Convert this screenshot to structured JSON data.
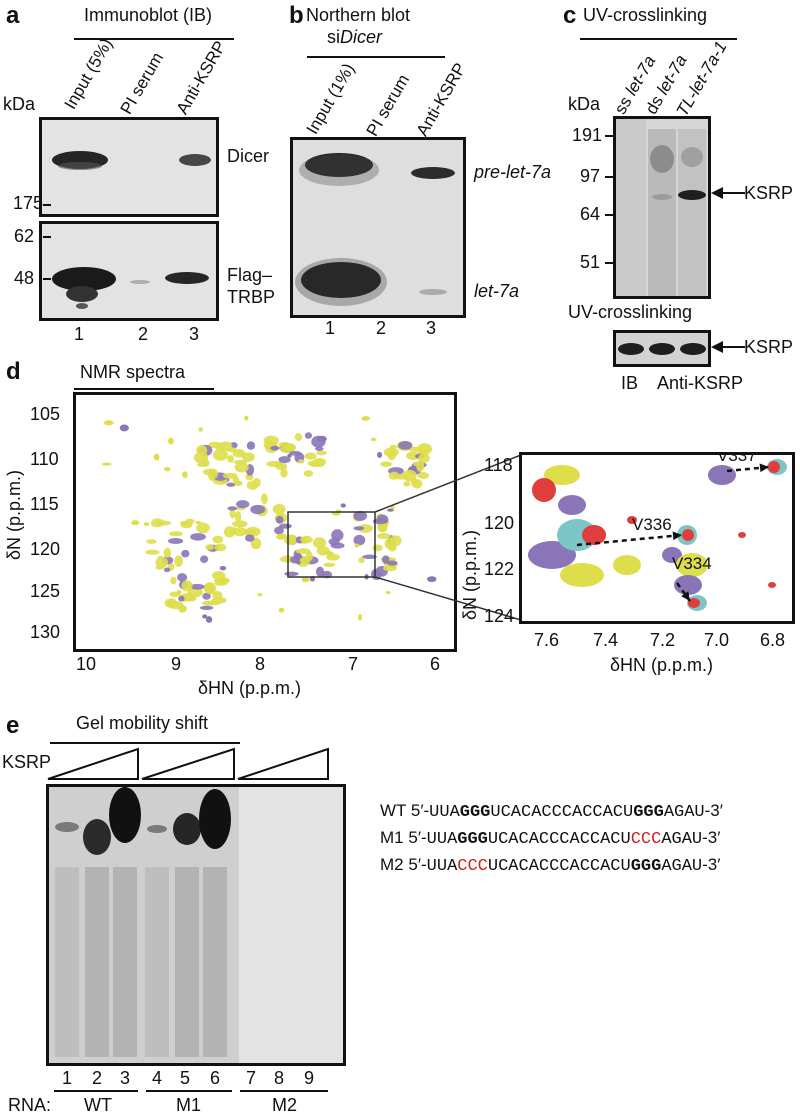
{
  "panel_a": {
    "letter": "a",
    "title": "Immunoblot (IB)",
    "kda_label": "kDa",
    "lanes": [
      "Input (5%)",
      "PI serum",
      "Anti-KSRP"
    ],
    "markers": [
      "175",
      "62",
      "48"
    ],
    "band_labels": [
      "Dicer",
      "Flag–",
      "TRBP"
    ],
    "lane_numbers": [
      "1",
      "2",
      "3"
    ]
  },
  "panel_b": {
    "letter": "b",
    "title_line1": "Northern blot",
    "title_prefix": "si",
    "title_italic": "Dicer",
    "lanes": [
      "Input (1%)",
      "PI serum",
      "Anti-KSRP"
    ],
    "band_labels": [
      "pre-let-7a",
      "let-7a"
    ],
    "lane_numbers": [
      "1",
      "2",
      "3"
    ]
  },
  "panel_c": {
    "letter": "c",
    "title": "UV-crosslinking",
    "kda_label": "kDa",
    "lane1_prefix": "ss ",
    "lane1_italic": "let-7a",
    "lane2_prefix": "ds ",
    "lane2_italic": "let-7a",
    "lane3_italic": "TL-let-7a-1",
    "markers": [
      "191",
      "97",
      "64",
      "51"
    ],
    "arrow_label": "KSRP",
    "lower_title": "UV-crosslinking",
    "lower_arrow_label": "KSRP",
    "ib_label": "IB",
    "anti_label": "Anti-KSRP"
  },
  "panel_d": {
    "letter": "d",
    "title": "NMR spectra",
    "left_xticks": [
      "10",
      "9",
      "8",
      "7",
      "6"
    ],
    "left_yticks": [
      "105",
      "110",
      "115",
      "120",
      "125",
      "130"
    ],
    "xlabel_delta": "δ",
    "xlabel": "HN (p.p.m.)",
    "ylabel_delta": "δ",
    "ylabel": "N (p.p.m.)",
    "right_xticks": [
      "7.6",
      "7.4",
      "7.2",
      "7.0",
      "6.8"
    ],
    "right_yticks": [
      "118",
      "120",
      "122",
      "124"
    ],
    "annotations": [
      "V337",
      "V336",
      "V334"
    ],
    "colors": {
      "purple": "#8a75b8",
      "yellow": "#dede4a",
      "red": "#e23d3d",
      "cyan": "#7cc6c8"
    }
  },
  "panel_e": {
    "letter": "e",
    "title": "Gel mobility shift",
    "ksrp_label": "KSRP",
    "lane_numbers": [
      "1",
      "2",
      "3",
      "4",
      "5",
      "6",
      "7",
      "8",
      "9"
    ],
    "rna_label": "RNA:",
    "groups": [
      "WT",
      "M1",
      "M2"
    ],
    "sequences": [
      {
        "name": "WT",
        "prefix": "5′-",
        "s1": "UUA",
        "s2": "GGG",
        "s3": "UCACACCCACCACU",
        "s4": "GGG",
        "s5": "AGAU",
        "suffix": "-3′"
      },
      {
        "name": "M1",
        "prefix": "5′-",
        "s1": "UUA",
        "s2": "GGG",
        "s3": "UCACACCCACCACU",
        "s4": "CCC",
        "s5": "AGAU",
        "suffix": "-3′"
      },
      {
        "name": "M2",
        "prefix": "5′-",
        "s1": "UUA",
        "s2": "CCC",
        "s3": "UCACACCCACCACU",
        "s4": "GGG",
        "s5": "AGAU",
        "suffix": "-3′"
      }
    ]
  }
}
